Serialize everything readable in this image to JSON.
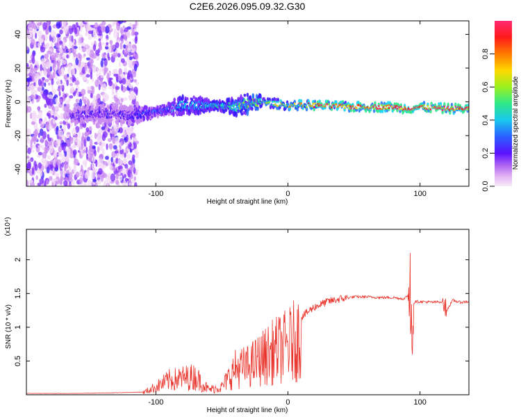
{
  "title": "C2E6.2026.095.09.32.G30",
  "colors": {
    "snr_line": "#e8332b",
    "colormap": [
      "#f2d9f5",
      "#c98bf0",
      "#7d2cff",
      "#3c1aff",
      "#2a78ff",
      "#17d4f0",
      "#2fe88a",
      "#9af01e",
      "#ffd800",
      "#ff7a00",
      "#ff1a1a",
      "#ff2a6a"
    ]
  },
  "chart_data": [
    {
      "type": "heatmap",
      "title": "C2E6.2026.095.09.32.G30",
      "xlabel": "Height of straight line (km)",
      "ylabel": "Frequency (Hz)",
      "xlim": [
        -198,
        137
      ],
      "ylim": [
        -50,
        48
      ],
      "xticks": [
        -100,
        0,
        100
      ],
      "yticks": [
        -40,
        -20,
        0,
        20,
        40
      ],
      "colorbar": {
        "label": "Normalized spectral amplitude",
        "range": [
          0,
          1
        ],
        "ticks": [
          0.0,
          0.2,
          0.4,
          0.6,
          0.8
        ]
      },
      "ridge": {
        "description": "frequency of strongest signal vs height",
        "x": [
          -160,
          -140,
          -120,
          -100,
          -85,
          -70,
          -55,
          -40,
          -30,
          -20,
          -10,
          0,
          20,
          50,
          80,
          90,
          100,
          120,
          137
        ],
        "y": [
          -8,
          -7,
          -8,
          -6,
          -3,
          -2,
          -2,
          -3,
          -1,
          0,
          -1,
          -2,
          -2,
          -3,
          -3,
          -4,
          -3,
          -4,
          -4
        ]
      },
      "noise_region": [
        -198,
        -120
      ]
    },
    {
      "type": "line",
      "xlabel": "Height of straight line (km)",
      "ylabel": "SNR (10 * v/v)",
      "y_multiplier": "(x10⁴)",
      "xlim": [
        -198,
        137
      ],
      "ylim": [
        0,
        2.45
      ],
      "xticks": [
        -100,
        0,
        100
      ],
      "yticks": [
        0.5,
        1.0,
        1.5,
        2.0
      ],
      "series": [
        {
          "name": "SNR",
          "x": [
            -198,
            -160,
            -130,
            -110,
            -100,
            -90,
            -80,
            -70,
            -60,
            -50,
            -40,
            -30,
            -20,
            -10,
            0,
            10,
            20,
            30,
            40,
            50,
            60,
            70,
            80,
            88,
            92,
            94,
            96,
            100,
            110,
            118,
            120,
            125,
            130,
            137
          ],
          "values": [
            0.02,
            0.02,
            0.03,
            0.04,
            0.15,
            0.28,
            0.32,
            0.35,
            0.1,
            0.15,
            0.5,
            0.55,
            0.7,
            0.85,
            0.95,
            1.15,
            1.3,
            1.38,
            1.42,
            1.45,
            1.45,
            1.44,
            1.44,
            1.42,
            1.5,
            1.3,
            1.38,
            1.38,
            1.37,
            1.38,
            1.25,
            1.4,
            1.37,
            1.38
          ]
        }
      ]
    }
  ]
}
